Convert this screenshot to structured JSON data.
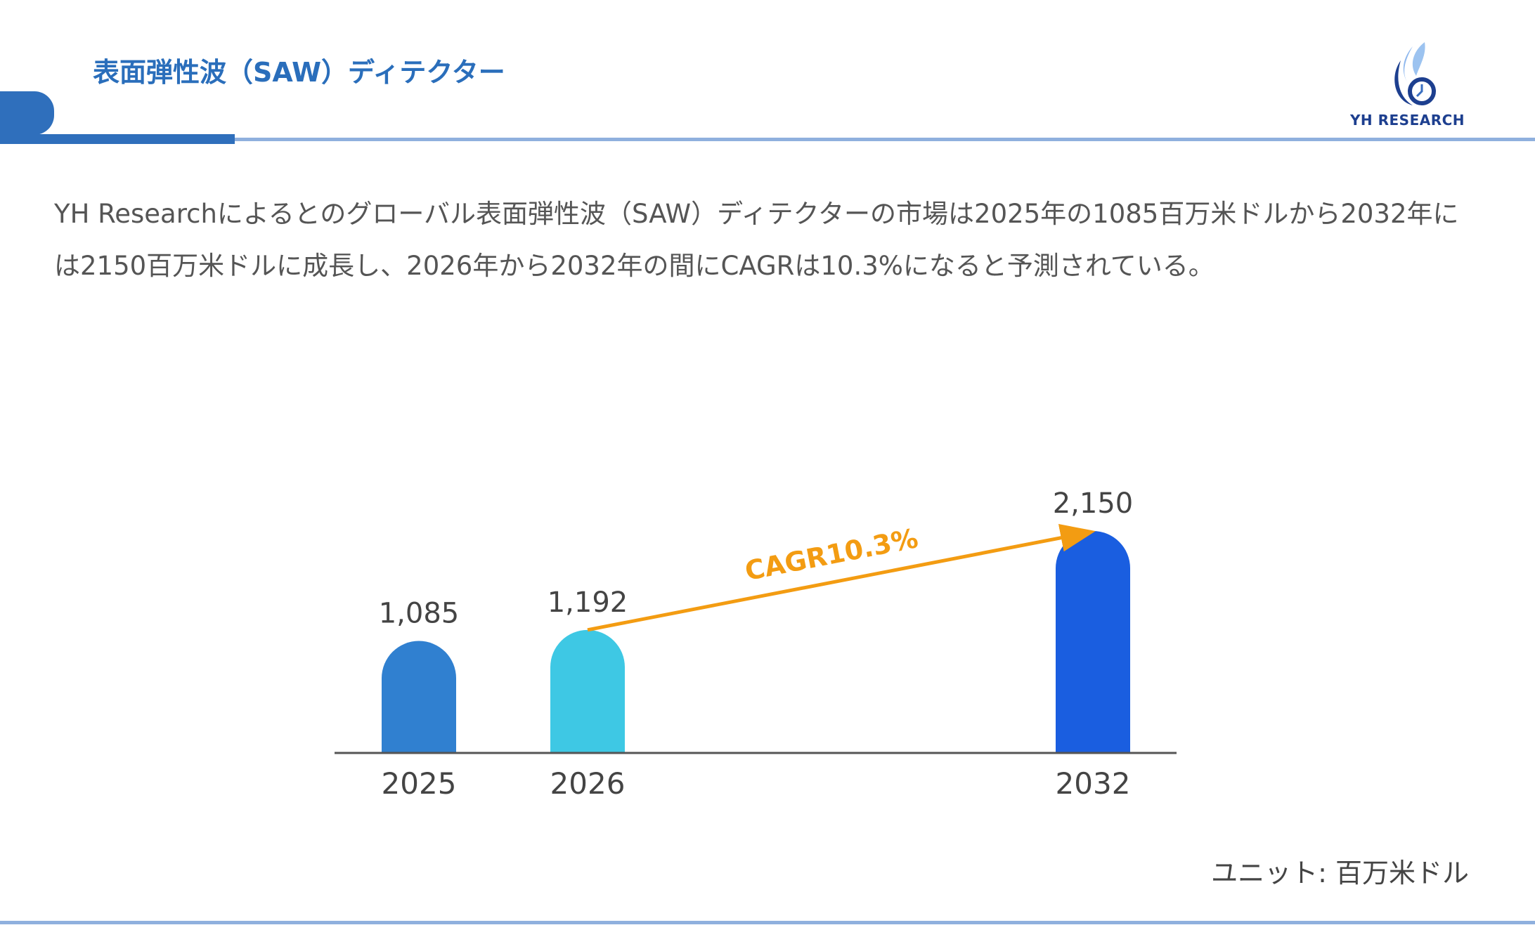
{
  "header": {
    "title": "表面弾性波（SAW）ディテクター",
    "logo_text": "YH RESEARCH"
  },
  "description": "YH Researchによるとのグローバル表面弾性波（SAW）ディテクターの市場は2025年の1085百万米ドルから2032年には2150百万米ドルに成長し、2026年から2032年の間にCAGRは10.3%になると予測されている。",
  "unit_label": "ユニット: 百万米ドル",
  "colors": {
    "title": "#2a6ebb",
    "accent_line": "#8fb0de",
    "cagr": "#f39c12"
  },
  "chart_data": {
    "type": "bar",
    "categories": [
      "2025",
      "2026",
      "2032"
    ],
    "values": [
      1085,
      1192,
      2150
    ],
    "value_labels": [
      "1,085",
      "1,192",
      "2,150"
    ],
    "bar_colors": [
      "#3080d0",
      "#3ec8e4",
      "#1a5ee0"
    ],
    "annotation": {
      "text": "CAGR10.3%",
      "from": "2026",
      "to": "2032"
    },
    "title": "",
    "xlabel": "",
    "ylabel": "",
    "ylim": [
      0,
      2150
    ],
    "grid": false,
    "legend": "none"
  }
}
